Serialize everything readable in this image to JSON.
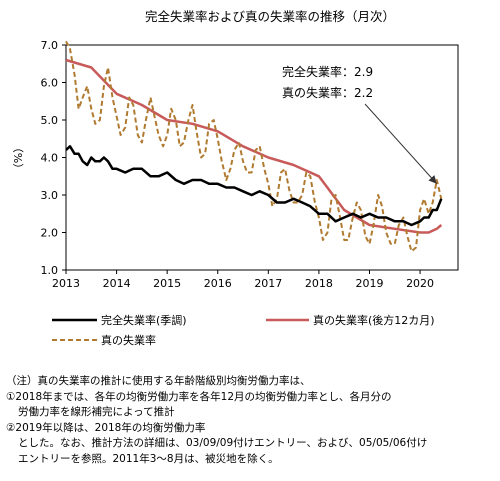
{
  "chart_data": {
    "type": "line",
    "title": "完全失業率および真の失業率の推移（月次）",
    "ylabel": "（%）",
    "ylim": [
      1.0,
      7.0
    ],
    "y_ticks": [
      "1.0",
      "2.0",
      "3.0",
      "4.0",
      "5.0",
      "6.0",
      "7.0"
    ],
    "xlim": [
      2013.0,
      2020.75
    ],
    "x_ticks": [
      "2013",
      "2014",
      "2015",
      "2016",
      "2017",
      "2018",
      "2019",
      "2020"
    ],
    "grid": false,
    "legend_position": "bottom",
    "annotation": {
      "lines": [
        "完全失業率：2.9",
        "真の失業率：2.2"
      ],
      "arrow_to": [
        2020.33,
        3.3
      ]
    },
    "series": [
      {
        "name": "完全失業率(季調)",
        "color": "#000000",
        "style": "solid",
        "x": [
          2013.0,
          2013.08,
          2013.17,
          2013.25,
          2013.33,
          2013.42,
          2013.5,
          2013.58,
          2013.67,
          2013.75,
          2013.83,
          2013.92,
          2014.0,
          2014.17,
          2014.33,
          2014.5,
          2014.67,
          2014.83,
          2015.0,
          2015.17,
          2015.33,
          2015.5,
          2015.67,
          2015.83,
          2016.0,
          2016.17,
          2016.33,
          2016.5,
          2016.67,
          2016.83,
          2017.0,
          2017.17,
          2017.33,
          2017.5,
          2017.67,
          2017.83,
          2018.0,
          2018.17,
          2018.33,
          2018.5,
          2018.67,
          2018.83,
          2019.0,
          2019.17,
          2019.33,
          2019.5,
          2019.67,
          2019.83,
          2020.0,
          2020.08,
          2020.17,
          2020.25,
          2020.33,
          2020.42
        ],
        "values": [
          4.2,
          4.3,
          4.1,
          4.1,
          3.9,
          3.8,
          4.0,
          3.9,
          3.9,
          4.0,
          3.9,
          3.7,
          3.7,
          3.6,
          3.7,
          3.7,
          3.5,
          3.5,
          3.6,
          3.4,
          3.3,
          3.4,
          3.4,
          3.3,
          3.3,
          3.2,
          3.2,
          3.1,
          3.0,
          3.1,
          3.0,
          2.8,
          2.8,
          2.9,
          2.8,
          2.7,
          2.5,
          2.5,
          2.3,
          2.4,
          2.5,
          2.4,
          2.5,
          2.4,
          2.4,
          2.3,
          2.3,
          2.2,
          2.3,
          2.4,
          2.4,
          2.6,
          2.6,
          2.9
        ]
      },
      {
        "name": "真の失業率(後方12カ月)",
        "color": "#c85a5a",
        "style": "solid",
        "x": [
          2013.0,
          2013.5,
          2014.0,
          2014.5,
          2015.0,
          2015.5,
          2016.0,
          2016.5,
          2017.0,
          2017.5,
          2018.0,
          2018.5,
          2019.0,
          2019.5,
          2020.0,
          2020.17,
          2020.33,
          2020.42
        ],
        "values": [
          6.6,
          6.4,
          5.7,
          5.4,
          5.0,
          4.9,
          4.7,
          4.3,
          4.0,
          3.8,
          3.5,
          2.6,
          2.2,
          2.1,
          2.0,
          2.0,
          2.1,
          2.2
        ]
      },
      {
        "name": "真の失業率",
        "color": "#b07a30",
        "style": "dashed",
        "x": [
          2013.0,
          2013.08,
          2013.17,
          2013.25,
          2013.33,
          2013.42,
          2013.5,
          2013.58,
          2013.67,
          2013.75,
          2013.83,
          2013.92,
          2014.0,
          2014.08,
          2014.17,
          2014.25,
          2014.33,
          2014.42,
          2014.5,
          2014.58,
          2014.67,
          2014.75,
          2014.83,
          2014.92,
          2015.0,
          2015.08,
          2015.17,
          2015.25,
          2015.33,
          2015.42,
          2015.5,
          2015.58,
          2015.67,
          2015.75,
          2015.83,
          2015.92,
          2016.0,
          2016.08,
          2016.17,
          2016.25,
          2016.33,
          2016.42,
          2016.5,
          2016.58,
          2016.67,
          2016.75,
          2016.83,
          2016.92,
          2017.0,
          2017.08,
          2017.17,
          2017.25,
          2017.33,
          2017.42,
          2017.5,
          2017.58,
          2017.67,
          2017.75,
          2017.83,
          2017.92,
          2018.0,
          2018.08,
          2018.17,
          2018.25,
          2018.33,
          2018.42,
          2018.5,
          2018.58,
          2018.67,
          2018.75,
          2018.83,
          2018.92,
          2019.0,
          2019.08,
          2019.17,
          2019.25,
          2019.33,
          2019.42,
          2019.5,
          2019.58,
          2019.67,
          2019.75,
          2019.83,
          2019.92,
          2020.0,
          2020.08,
          2020.17,
          2020.25,
          2020.33,
          2020.42
        ],
        "values": [
          7.1,
          6.9,
          6.2,
          5.3,
          5.6,
          5.9,
          5.3,
          4.9,
          5.0,
          5.9,
          6.4,
          5.6,
          5.1,
          4.6,
          4.8,
          5.6,
          5.4,
          4.6,
          4.4,
          5.0,
          5.6,
          5.1,
          4.6,
          4.3,
          4.6,
          5.3,
          5.0,
          4.3,
          4.4,
          5.0,
          5.4,
          4.7,
          4.0,
          4.1,
          4.9,
          5.0,
          4.5,
          3.9,
          3.4,
          3.7,
          4.2,
          4.4,
          3.9,
          3.6,
          3.6,
          4.2,
          4.3,
          3.7,
          3.3,
          2.7,
          2.9,
          3.6,
          3.7,
          3.1,
          2.8,
          2.8,
          3.0,
          3.6,
          3.5,
          2.8,
          2.4,
          1.8,
          2.0,
          2.9,
          3.0,
          2.4,
          1.8,
          1.8,
          2.4,
          2.8,
          2.6,
          1.9,
          1.7,
          2.2,
          3.0,
          2.7,
          2.0,
          1.7,
          1.7,
          2.2,
          2.4,
          1.9,
          1.5,
          1.6,
          2.6,
          2.9,
          2.5,
          2.8,
          3.4,
          2.9
        ]
      }
    ]
  },
  "notes": {
    "heading": "（注）真の失業率の推計に使用する年齢階級別均衡労働力率は、",
    "item1_line1": "①2018年までは、各年の均衡労働力率を各年12月の均衡労働力率とし、各月分の",
    "item1_line2": "労働力率を線形補完によって推計",
    "item2_line1": "②2019年以降は、2018年の均衡労働力率",
    "item2_line2": "とした。なお、推計方法の詳細は、03/09/09付けエントリー、および、05/05/06付け",
    "item2_line3": "エントリーを参照。2011年3～8月は、被災地を除く。"
  }
}
